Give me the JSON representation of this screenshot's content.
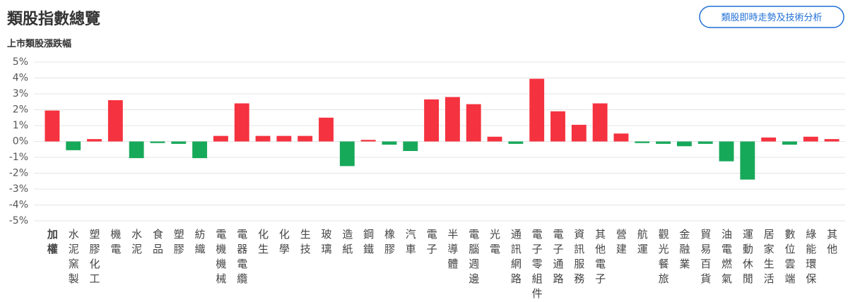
{
  "header": {
    "title": "類股指數總覽",
    "button": "類股即時走勢及技術分析"
  },
  "chart_data": {
    "type": "bar",
    "title": "上市類股漲跌幅",
    "categories": [
      "加權",
      "水泥窯製",
      "塑膠化工",
      "機電",
      "水泥",
      "食品",
      "塑膠",
      "紡織",
      "電機機械",
      "電器電纜",
      "化生",
      "化學",
      "生技",
      "玻璃",
      "造紙",
      "鋼鐵",
      "橡膠",
      "汽車",
      "電子",
      "半導體",
      "電腦週邊",
      "光電",
      "通訊網路",
      "電子零組件",
      "電子通路",
      "資訊服務",
      "其他電子",
      "營建",
      "航運",
      "觀光餐旅",
      "金融業",
      "貿易百貨",
      "油電燃氣",
      "運動休閒",
      "居家生活",
      "數位雲端",
      "綠能環保",
      "其他"
    ],
    "values": [
      1.95,
      -0.55,
      0.15,
      2.6,
      -1.05,
      -0.1,
      -0.15,
      -1.05,
      0.35,
      2.4,
      0.35,
      0.35,
      0.35,
      1.5,
      -1.55,
      0.1,
      -0.2,
      -0.6,
      2.65,
      2.8,
      2.35,
      0.3,
      -0.15,
      3.95,
      1.9,
      1.05,
      2.4,
      0.5,
      -0.1,
      -0.15,
      -0.3,
      -0.15,
      -1.25,
      -2.4,
      0.25,
      -0.2,
      0.3,
      0.15
    ],
    "positive_color": "#f5323f",
    "negative_color": "#17a95a",
    "ylim": [
      -5,
      5
    ],
    "yticks": [
      {
        "value": -5,
        "label": "-5%"
      },
      {
        "value": -4,
        "label": "-4%"
      },
      {
        "value": -3,
        "label": "-3%"
      },
      {
        "value": -2,
        "label": "-2%"
      },
      {
        "value": -1,
        "label": "-1%"
      },
      {
        "value": 0,
        "label": "0%"
      },
      {
        "value": 1,
        "label": "1%"
      },
      {
        "value": 2,
        "label": "2%"
      },
      {
        "value": 3,
        "label": "3%"
      },
      {
        "value": 4,
        "label": "4%"
      },
      {
        "value": 5,
        "label": "5%"
      }
    ],
    "grid": true
  }
}
